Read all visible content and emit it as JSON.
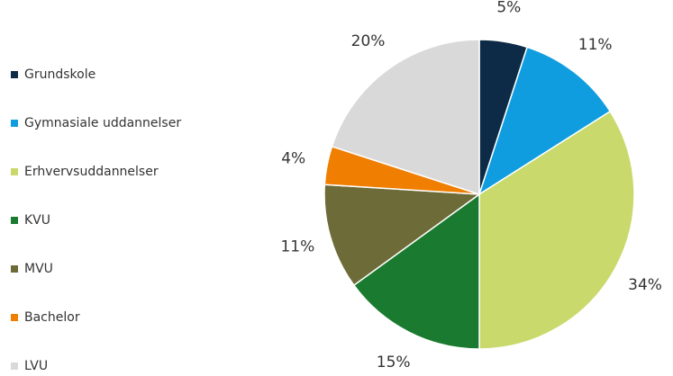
{
  "chart_data": {
    "type": "pie",
    "categories": [
      "Grundskole",
      "Gymnasiale uddannelser",
      "Erhvervsuddannelser",
      "KVU",
      "MVU",
      "Bachelor",
      "LVU"
    ],
    "values": [
      5,
      11,
      34,
      15,
      11,
      4,
      20
    ],
    "value_labels": [
      "5%",
      "11%",
      "34%",
      "15%",
      "11%",
      "4%",
      "20%"
    ],
    "colors": [
      "#0d2b46",
      "#0f9de0",
      "#c9d96b",
      "#1a7a2f",
      "#6d6b37",
      "#f07e00",
      "#d9d9d9"
    ],
    "legend": "left"
  }
}
